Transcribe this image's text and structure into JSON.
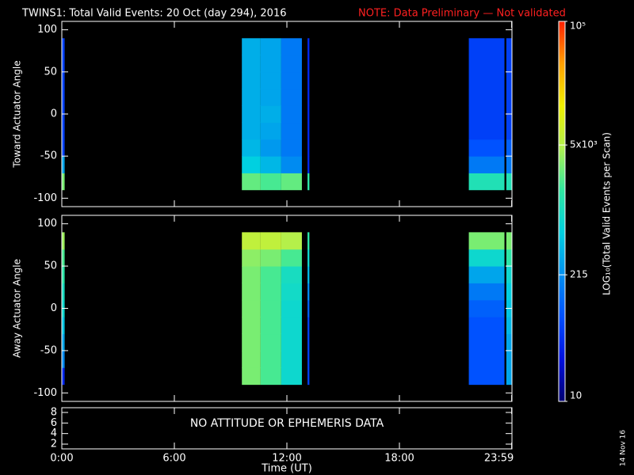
{
  "chart_data": {
    "type": "heatmap",
    "title": "TWINS1: Total Valid Events: 20 Oct (day 294), 2016",
    "note": "NOTE: Data Preliminary — Not validated",
    "xlabel": "Time (UT)",
    "xlim": [
      0,
      24
    ],
    "xticks": [
      {
        "value": 0,
        "label": "0:00"
      },
      {
        "value": 6,
        "label": "6:00"
      },
      {
        "value": 12,
        "label": "12:00"
      },
      {
        "value": 18,
        "label": "18:00"
      },
      {
        "value": 23.983,
        "label": "23:59"
      }
    ],
    "angle_bins": [
      -90,
      -70,
      -50,
      -30,
      -10,
      10,
      30,
      50,
      70,
      90
    ],
    "panels": [
      {
        "ylabel": "Toward Actuator Angle",
        "ylim": [
          -110,
          110
        ],
        "yticks": [
          -100,
          -50,
          0,
          50,
          100
        ],
        "columns": [
          {
            "start": 0,
            "end": 0.15,
            "values": [
              3000,
              300,
              60,
              60,
              60,
              60,
              60,
              60,
              60
            ]
          },
          {
            "start": 9.6,
            "end": 10.6,
            "values": [
              2500,
              600,
              400,
              350,
              350,
              350,
              350,
              350,
              350
            ]
          },
          {
            "start": 10.6,
            "end": 11.7,
            "values": [
              2000,
              400,
              250,
              300,
              350,
              300,
              300,
              300,
              300
            ]
          },
          {
            "start": 11.7,
            "end": 12.8,
            "values": [
              2500,
              200,
              150,
              150,
              150,
              150,
              150,
              150,
              150
            ]
          },
          {
            "start": 13.1,
            "end": 13.2,
            "values": [
              1500,
              40,
              40,
              40,
              40,
              40,
              40,
              40,
              40
            ]
          },
          {
            "start": 21.7,
            "end": 23.6,
            "values": [
              1200,
              150,
              80,
              60,
              60,
              60,
              60,
              60,
              60
            ]
          },
          {
            "start": 23.7,
            "end": 23.983,
            "values": [
              1200,
              150,
              100,
              60,
              60,
              60,
              60,
              60,
              60
            ]
          }
        ]
      },
      {
        "ylabel": "Away Actuator Angle",
        "ylim": [
          -110,
          110
        ],
        "yticks": [
          -100,
          -50,
          0,
          50,
          100
        ],
        "columns": [
          {
            "start": 0,
            "end": 0.15,
            "values": [
              40,
              200,
              300,
              500,
              800,
              1000,
              1500,
              2000,
              4000
            ]
          },
          {
            "start": 9.6,
            "end": 10.6,
            "values": [
              3000,
              3000,
              3000,
              3000,
              3000,
              3000,
              3000,
              3500,
              6000
            ]
          },
          {
            "start": 10.6,
            "end": 11.7,
            "values": [
              2000,
              2000,
              2000,
              2000,
              2000,
              2000,
              2000,
              3000,
              6000
            ]
          },
          {
            "start": 11.7,
            "end": 12.8,
            "values": [
              800,
              800,
              800,
              800,
              800,
              900,
              1000,
              2000,
              5000
            ]
          },
          {
            "start": 13.1,
            "end": 13.2,
            "values": [
              60,
              60,
              60,
              60,
              100,
              200,
              400,
              800,
              1500
            ]
          },
          {
            "start": 21.7,
            "end": 23.6,
            "values": [
              80,
              80,
              80,
              80,
              100,
              150,
              300,
              800,
              3000
            ]
          },
          {
            "start": 23.7,
            "end": 23.983,
            "values": [
              300,
              300,
              300,
              400,
              500,
              600,
              800,
              1500,
              3000
            ]
          }
        ]
      },
      {
        "ylim": [
          1.1,
          8.9
        ],
        "yticks": [
          2,
          4,
          6,
          8
        ],
        "message": "NO ATTITUDE OR EPHEMERIS DATA"
      }
    ],
    "colorbar": {
      "label": "LOG₁₀(Total Valid Events per Scan)",
      "scale": "log",
      "lim": [
        10,
        100000
      ],
      "ticks": [
        10,
        215,
        {
          "value": 5000,
          "label": "5x10³"
        },
        {
          "value": 100000,
          "label": "10⁵"
        }
      ],
      "colors": [
        "#000070",
        "#0010e0",
        "#0050ff",
        "#0090f0",
        "#00d0e0",
        "#30e8a0",
        "#b0f050",
        "#f0f000",
        "#ffa000",
        "#ff2000"
      ]
    },
    "footer": "14 Nov 16"
  }
}
